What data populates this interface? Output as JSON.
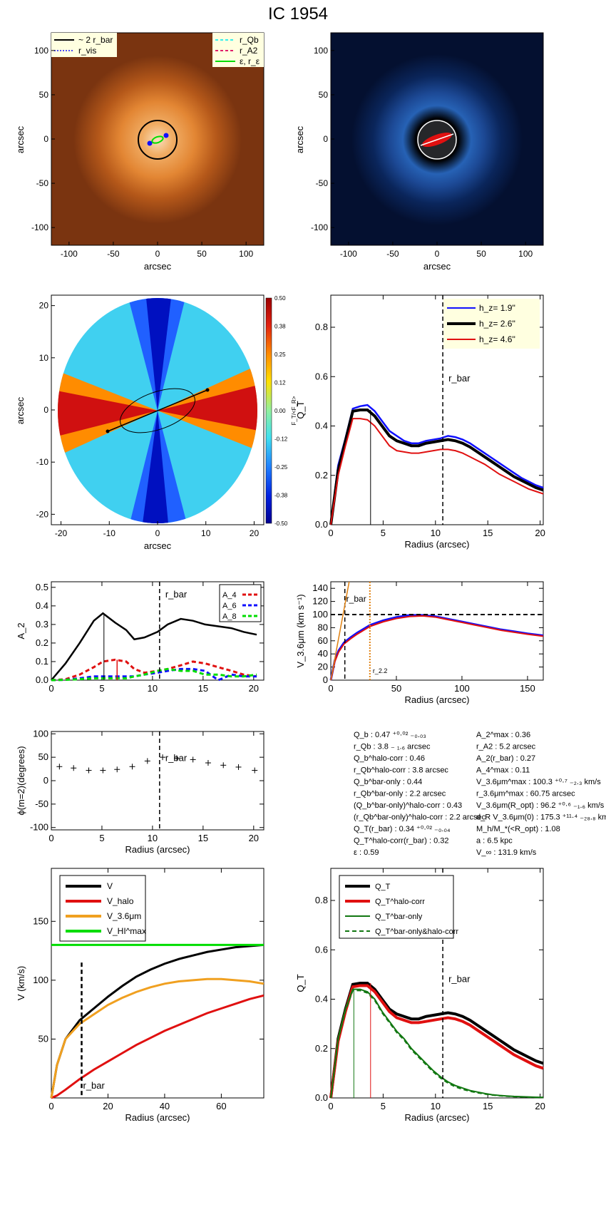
{
  "title": "IC 1954",
  "colors": {
    "black": "#000000",
    "blue": "#1010ff",
    "red": "#e01010",
    "green": "#00dd00",
    "cyan": "#33eeee",
    "magenta": "#e0206a",
    "orange": "#f0a020",
    "darkgreen": "#117711",
    "darkorange": "#e08010"
  },
  "chart_data": [
    {
      "id": "image-panel",
      "type": "heatmap",
      "xlabel": "arcsec",
      "ylabel": "arcsec",
      "xlim": [
        -120,
        120
      ],
      "ylim": [
        -120,
        120
      ],
      "xticks": [
        "-100",
        "-50",
        "0",
        "50",
        "100"
      ],
      "yticks": [
        "100",
        "50",
        "0",
        "-50",
        "-100"
      ],
      "legend_left": [
        "~ 2 r_bar",
        "r_vis"
      ],
      "legend_right": [
        "r_Qb",
        "r_A2",
        "ε, r_ε"
      ]
    },
    {
      "id": "residual-image-panel",
      "type": "heatmap",
      "xlabel": "arcsec",
      "ylabel": "arcsec",
      "xlim": [
        -120,
        120
      ],
      "ylim": [
        -120,
        120
      ],
      "xticks": [
        "-100",
        "-50",
        "0",
        "50",
        "100"
      ],
      "yticks": [
        "100",
        "50",
        "0",
        "-50",
        "-100"
      ]
    },
    {
      "id": "force-ratio-map",
      "type": "heatmap",
      "xlabel": "arcsec",
      "ylabel": "arcsec",
      "xlim": [
        -22,
        22
      ],
      "ylim": [
        -22,
        22
      ],
      "xticks": [
        "-20",
        "-10",
        "0",
        "10",
        "20"
      ],
      "yticks": [
        "20",
        "10",
        "0",
        "-10",
        "-20"
      ],
      "colorbar_ticks": [
        "0.50",
        "0.38",
        "0.25",
        "0.12",
        "0.00",
        "-0.12",
        "-0.25",
        "-0.38",
        "-0.50"
      ],
      "colorbar_label": "F_T/<F_R>"
    },
    {
      "id": "qt-profile",
      "type": "line",
      "xlabel": "Radius (arcsec)",
      "ylabel": "Q_T",
      "xlim": [
        0,
        20.3
      ],
      "ylim": [
        0,
        0.93
      ],
      "xticks": [
        "0",
        "5",
        "10",
        "15",
        "20"
      ],
      "yticks": [
        "0.0",
        "0.2",
        "0.4",
        "0.6",
        "0.8"
      ],
      "x": [
        0,
        0.7,
        1.4,
        2.1,
        2.8,
        3.5,
        4.2,
        4.9,
        5.6,
        6.3,
        7.0,
        7.7,
        8.4,
        9.1,
        9.8,
        10.5,
        11.2,
        11.9,
        12.6,
        13.3,
        14.0,
        14.7,
        15.4,
        16.1,
        16.8,
        17.5,
        18.2,
        18.9,
        19.6,
        20.3
      ],
      "series": [
        {
          "name": "h_z= 1.9''",
          "color": "#1010ff",
          "values": [
            0,
            0.24,
            0.35,
            0.47,
            0.48,
            0.485,
            0.46,
            0.42,
            0.38,
            0.36,
            0.34,
            0.33,
            0.33,
            0.34,
            0.345,
            0.35,
            0.36,
            0.355,
            0.345,
            0.33,
            0.31,
            0.29,
            0.27,
            0.25,
            0.23,
            0.21,
            0.19,
            0.175,
            0.16,
            0.15
          ]
        },
        {
          "name": "h_z= 2.6''",
          "color": "#000000",
          "values": [
            0,
            0.22,
            0.34,
            0.46,
            0.465,
            0.465,
            0.44,
            0.4,
            0.36,
            0.34,
            0.33,
            0.32,
            0.32,
            0.33,
            0.335,
            0.34,
            0.345,
            0.34,
            0.33,
            0.315,
            0.295,
            0.275,
            0.255,
            0.235,
            0.215,
            0.195,
            0.18,
            0.165,
            0.15,
            0.14
          ]
        },
        {
          "name": "h_z= 4.6''",
          "color": "#e01010",
          "values": [
            0,
            0.2,
            0.32,
            0.43,
            0.43,
            0.425,
            0.4,
            0.36,
            0.32,
            0.3,
            0.295,
            0.29,
            0.29,
            0.295,
            0.3,
            0.305,
            0.305,
            0.3,
            0.29,
            0.275,
            0.26,
            0.245,
            0.225,
            0.205,
            0.19,
            0.175,
            0.16,
            0.145,
            0.135,
            0.125
          ]
        }
      ],
      "annotations": [
        "r_bar"
      ],
      "r_bar": 10.7,
      "r_qb": 3.8
    },
    {
      "id": "fourier-amplitudes",
      "type": "line",
      "xlabel": "",
      "ylabel": "A_2",
      "xlim": [
        0,
        21
      ],
      "ylim": [
        0,
        0.53
      ],
      "xticks": [
        "0",
        "5",
        "10",
        "15",
        "20"
      ],
      "yticks": [
        "0.0",
        "0.1",
        "0.2",
        "0.3",
        "0.4",
        "0.5"
      ],
      "x": [
        0,
        1.4,
        2.8,
        4.2,
        5.1,
        6.3,
        7.4,
        8.2,
        9.2,
        10.5,
        11.5,
        12.8,
        14.0,
        15.2,
        16.5,
        17.8,
        19.0,
        20.3
      ],
      "series": [
        {
          "name": "A_2",
          "color": "#000000",
          "values": [
            0,
            0.09,
            0.2,
            0.32,
            0.36,
            0.31,
            0.27,
            0.22,
            0.23,
            0.26,
            0.3,
            0.33,
            0.32,
            0.3,
            0.29,
            0.28,
            0.26,
            0.245
          ]
        },
        {
          "name": "A_4",
          "color": "#e01010",
          "values": [
            0,
            0.005,
            0.03,
            0.07,
            0.1,
            0.11,
            0.1,
            0.06,
            0.04,
            0.05,
            0.06,
            0.08,
            0.1,
            0.09,
            0.07,
            0.05,
            0.03,
            0.02
          ]
        },
        {
          "name": "A_6",
          "color": "#1010ff",
          "values": [
            0,
            0.002,
            0.01,
            0.02,
            0.02,
            0.02,
            0.02,
            0.02,
            0.03,
            0.04,
            0.05,
            0.06,
            0.06,
            0.05,
            0.0,
            0.03,
            0.02,
            0.02
          ]
        },
        {
          "name": "A_8",
          "color": "#00dd00",
          "values": [
            0,
            0.002,
            0.005,
            0.01,
            0.01,
            0.01,
            0.01,
            0.02,
            0.03,
            0.05,
            0.06,
            0.05,
            0.05,
            0.03,
            0.03,
            0.02,
            0.02,
            0.03
          ]
        }
      ],
      "legend": [
        "A_4",
        "A_6",
        "A_8"
      ],
      "annotations": [
        "r_bar"
      ],
      "r_bar": 10.7,
      "r_a2": 5.2,
      "r_a4": 6.5
    },
    {
      "id": "rotation-curve-36",
      "type": "line",
      "xlabel": "Radius (arcsec)",
      "ylabel": "V_3.6μm (km s⁻¹)",
      "xlim": [
        0,
        162
      ],
      "ylim": [
        0,
        150
      ],
      "xticks": [
        "0",
        "50",
        "100",
        "150"
      ],
      "yticks": [
        "0",
        "20",
        "40",
        "60",
        "80",
        "100",
        "120",
        "140"
      ],
      "x": [
        0,
        3,
        6,
        10,
        15,
        20,
        25,
        30,
        40,
        50,
        60,
        70,
        80,
        90,
        100,
        110,
        120,
        130,
        140,
        150,
        162
      ],
      "series": [
        {
          "name": "V_3.6μm",
          "color": "#1010ff",
          "values": [
            0,
            30,
            45,
            57,
            65,
            72,
            78,
            84,
            91,
            96,
            99,
            99,
            97,
            93,
            89,
            85,
            81,
            77,
            74,
            71,
            68
          ]
        },
        {
          "name": "V_3.6μm (red)",
          "color": "#e01010",
          "values": [
            0,
            28,
            43,
            55,
            63,
            70,
            76,
            82,
            89,
            94,
            97,
            98,
            96,
            92,
            88,
            84,
            80,
            76,
            73,
            70,
            67
          ]
        }
      ],
      "vflat": 100,
      "annotations": [
        "r_bar",
        "r_2.2"
      ],
      "r_bar": 10.7,
      "r_22": 29.8
    },
    {
      "id": "phase-profile",
      "type": "scatter",
      "xlabel": "Radius (arcsec)",
      "ylabel": "ϕ(m=2)(degrees)",
      "xlim": [
        0,
        21
      ],
      "ylim": [
        -105,
        105
      ],
      "xticks": [
        "0",
        "5",
        "10",
        "15",
        "20"
      ],
      "yticks": [
        "100",
        "50",
        "0",
        "-50",
        "-100"
      ],
      "points": [
        [
          0.8,
          30
        ],
        [
          2.2,
          27
        ],
        [
          3.7,
          22
        ],
        [
          5.1,
          22
        ],
        [
          6.5,
          24
        ],
        [
          8.0,
          30
        ],
        [
          9.5,
          42
        ],
        [
          11.0,
          50
        ],
        [
          12.4,
          48
        ],
        [
          14.0,
          45
        ],
        [
          15.5,
          38
        ],
        [
          17.0,
          33
        ],
        [
          18.5,
          29
        ],
        [
          20.1,
          22
        ]
      ],
      "annotations": [
        "r_bar"
      ],
      "r_bar": 10.7
    },
    {
      "id": "rotation-curve-decomp",
      "type": "line",
      "xlabel": "Radius (arcsec)",
      "ylabel": "V (km/s)",
      "xlim": [
        0,
        75
      ],
      "ylim": [
        0,
        195
      ],
      "xticks": [
        "0",
        "20",
        "40",
        "60"
      ],
      "yticks": [
        "50",
        "100",
        "150"
      ],
      "x": [
        0,
        2,
        5,
        10,
        15,
        20,
        25,
        30,
        35,
        40,
        45,
        50,
        55,
        60,
        65,
        70,
        75
      ],
      "series": [
        {
          "name": "V",
          "color": "#000000",
          "values": [
            0,
            28,
            50,
            66,
            76,
            86,
            95,
            103,
            109,
            114,
            118,
            121,
            124,
            126,
            128,
            129,
            130
          ]
        },
        {
          "name": "V_halo",
          "color": "#e01010",
          "values": [
            0,
            2,
            7,
            16,
            24,
            31,
            38,
            45,
            51,
            57,
            62,
            67,
            72,
            76,
            80,
            84,
            87
          ]
        },
        {
          "name": "V_3.6μm",
          "color": "#f0a020",
          "values": [
            0,
            28,
            50,
            63,
            71,
            79,
            85,
            90,
            94,
            97,
            99,
            100,
            101,
            101,
            100,
            99,
            97
          ]
        },
        {
          "name": "V_HI^max",
          "color": "#00dd00",
          "values": [
            130,
            130,
            130,
            130,
            130,
            130,
            130,
            130,
            130,
            130,
            130,
            130,
            130,
            130,
            130,
            130,
            130
          ]
        }
      ],
      "annotations": [
        "r_bar"
      ],
      "r_bar": 10.7
    },
    {
      "id": "qt-corrected",
      "type": "line",
      "xlabel": "Radius (arcsec)",
      "ylabel": "Q_T",
      "xlim": [
        0,
        20.3
      ],
      "ylim": [
        0,
        0.93
      ],
      "xticks": [
        "0",
        "5",
        "10",
        "15",
        "20"
      ],
      "yticks": [
        "0.0",
        "0.2",
        "0.4",
        "0.6",
        "0.8"
      ],
      "x": [
        0,
        0.7,
        1.4,
        2.1,
        2.8,
        3.5,
        4.2,
        4.9,
        5.6,
        6.3,
        7.0,
        7.7,
        8.4,
        9.1,
        9.8,
        10.5,
        11.2,
        11.9,
        12.6,
        13.3,
        14.0,
        14.7,
        15.4,
        16.1,
        16.8,
        17.5,
        18.2,
        18.9,
        19.6,
        20.3
      ],
      "series": [
        {
          "name": "Q_T",
          "color": "#000000",
          "values": [
            0,
            0.24,
            0.36,
            0.46,
            0.465,
            0.465,
            0.44,
            0.4,
            0.36,
            0.34,
            0.33,
            0.32,
            0.32,
            0.33,
            0.335,
            0.34,
            0.345,
            0.34,
            0.33,
            0.315,
            0.295,
            0.275,
            0.255,
            0.235,
            0.215,
            0.195,
            0.18,
            0.165,
            0.15,
            0.14
          ]
        },
        {
          "name": "Q_T^halo-corr",
          "color": "#e01010",
          "values": [
            0,
            0.23,
            0.35,
            0.45,
            0.455,
            0.455,
            0.43,
            0.39,
            0.35,
            0.325,
            0.315,
            0.305,
            0.305,
            0.31,
            0.315,
            0.32,
            0.325,
            0.32,
            0.31,
            0.295,
            0.275,
            0.255,
            0.235,
            0.215,
            0.195,
            0.175,
            0.16,
            0.145,
            0.13,
            0.12
          ]
        },
        {
          "name": "Q_T^bar-only",
          "color": "#117711",
          "values": [
            0,
            0.24,
            0.36,
            0.44,
            0.44,
            0.43,
            0.4,
            0.35,
            0.31,
            0.27,
            0.24,
            0.2,
            0.17,
            0.14,
            0.11,
            0.085,
            0.065,
            0.05,
            0.04,
            0.03,
            0.024,
            0.018,
            0.013,
            0.01,
            0.008,
            0.006,
            0.005,
            0.004,
            0.003,
            0.002
          ]
        },
        {
          "name": "Q_T^bar-only&halo-corr",
          "color": "#117711",
          "values": [
            0,
            0.235,
            0.355,
            0.435,
            0.435,
            0.425,
            0.395,
            0.345,
            0.305,
            0.265,
            0.235,
            0.195,
            0.165,
            0.135,
            0.105,
            0.08,
            0.06,
            0.045,
            0.035,
            0.027,
            0.021,
            0.016,
            0.012,
            0.009,
            0.007,
            0.005,
            0.004,
            0.003,
            0.002,
            0.002
          ]
        }
      ],
      "annotations": [
        "r_bar"
      ],
      "r_bar": 10.7,
      "r_qb": 3.8,
      "r_qb_bar_only": 2.2
    }
  ],
  "params_left": [
    "Q_b :  0.47 ⁺⁰·⁰² ₋₀.₀₃",
    "r_Qb :  3.8 ₋ ₁.₆ arcsec",
    "Q_b^halo-corr :  0.46",
    "r_Qb^halo-corr :  3.8 arcsec",
    "Q_b^bar-only :  0.44",
    "r_Qb^bar-only :  2.2 arcsec",
    "(Q_b^bar-only)^halo-corr :  0.43",
    "(r_Qb^bar-only)^halo-corr :  2.2 arcsec",
    "Q_T(r_bar) :  0.34 ⁺⁰·⁰² ₋₀.₀₄",
    "Q_T^halo-corr(r_bar) :  0.32",
    "ε :  0.59"
  ],
  "params_right": [
    "A_2^max :  0.36",
    "r_A2 :  5.2 arcsec",
    "A_2(r_bar) :  0.27",
    "A_4^max :  0.11",
    "V_3.6μm^max :  100.3 ⁺⁰·⁷ ₋₂.₃ km/s",
    "r_3.6μm^max :  60.75 arcsec",
    "V_3.6μm(R_opt) :  96.2 ⁺⁰·⁶ ₋₁.₆ km/s",
    "d_R V_3.6μm(0) :  175.3 ⁺¹¹·⁴ ₋₂₈.₈ km/s/kpc",
    "M_h/M_*(<R_opt) :  1.08",
    "a :  6.5 kpc",
    "V_∞ :  131.9 km/s"
  ]
}
